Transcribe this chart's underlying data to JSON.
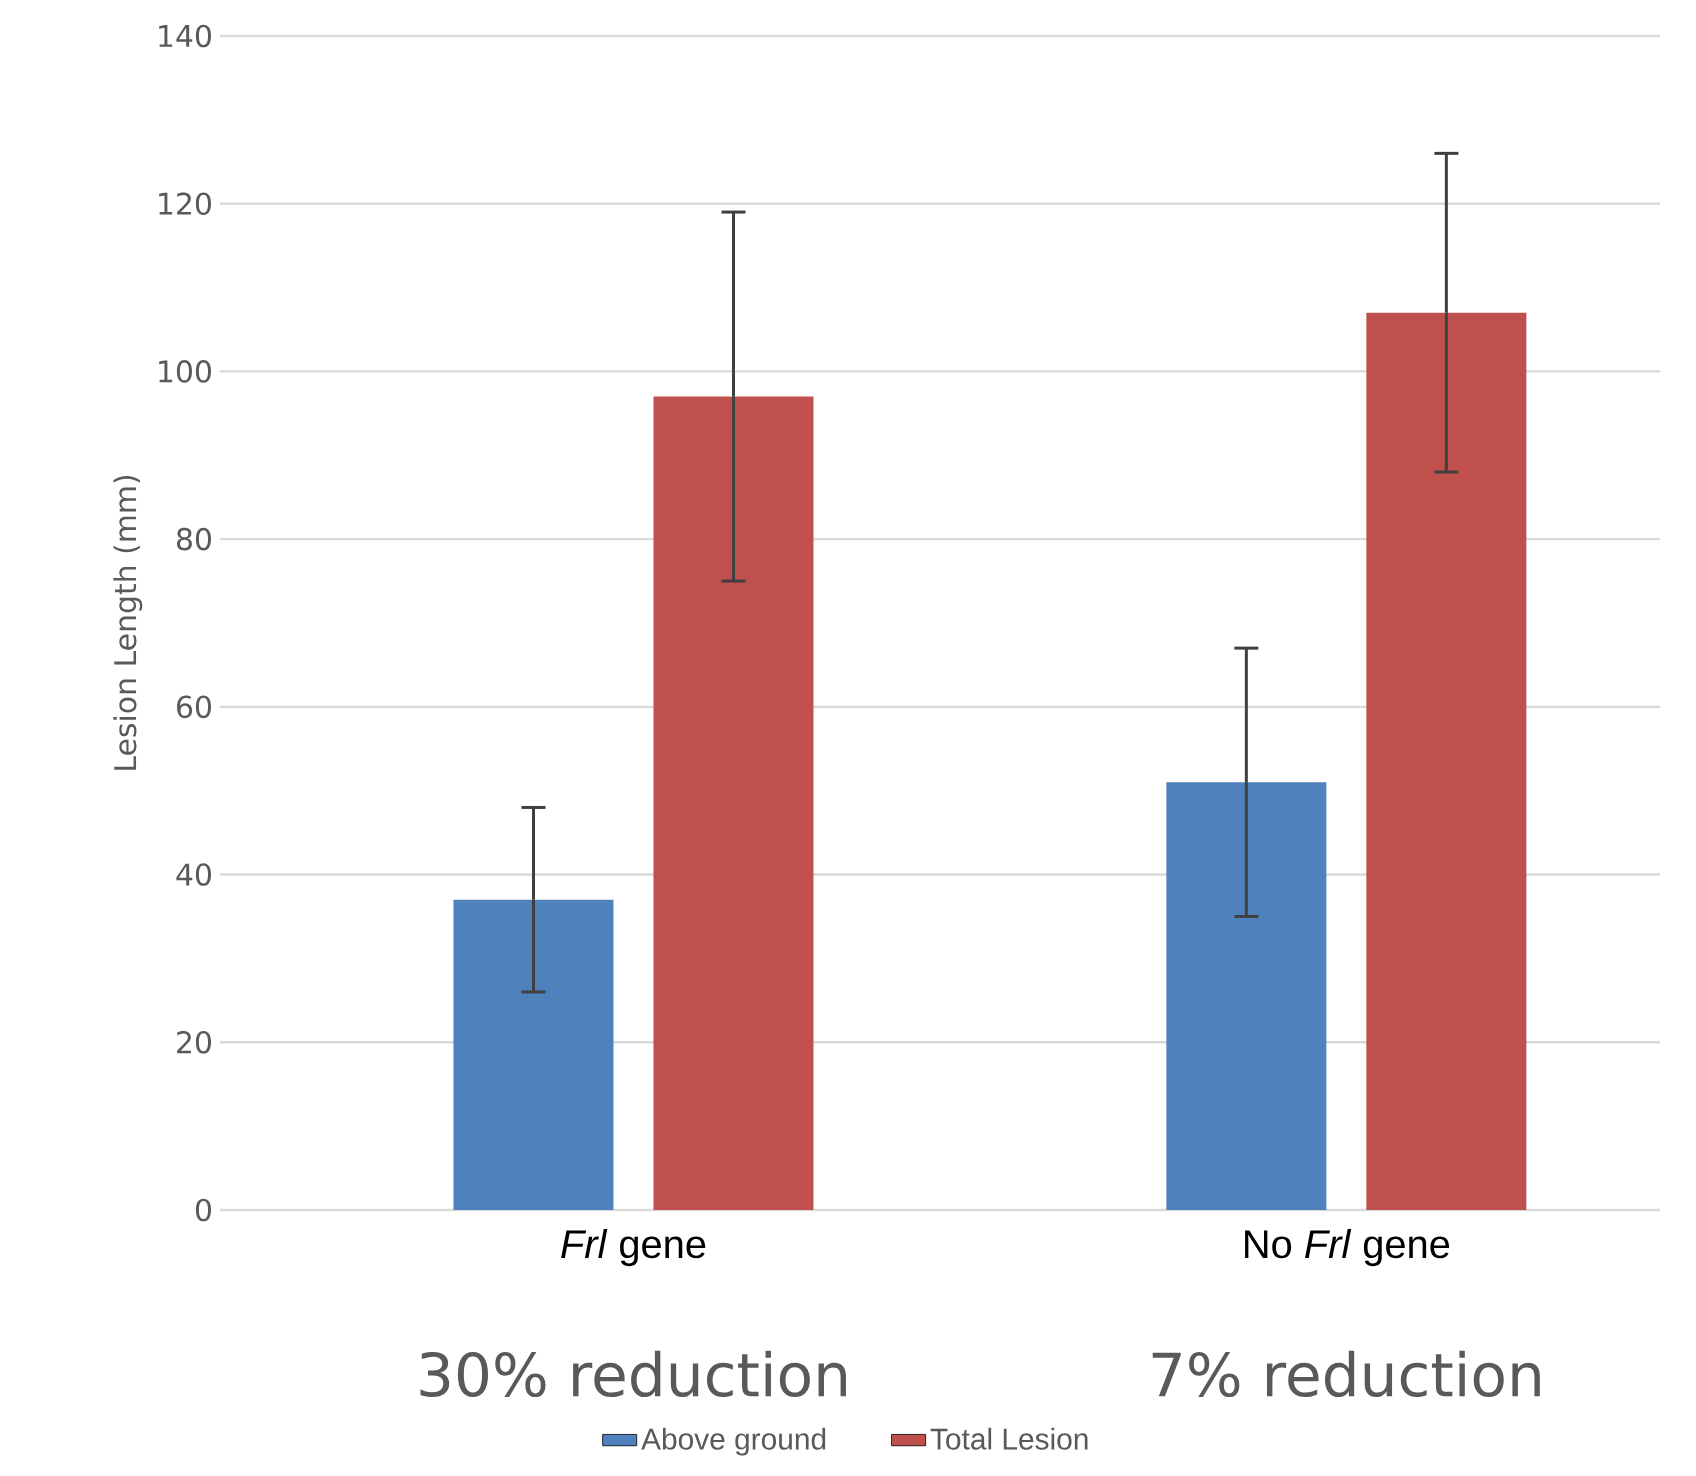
{
  "chart_data": {
    "type": "bar",
    "ylabel": "Lesion Length (mm)",
    "categories": [
      "*Frl* gene",
      "No *Frl* gene"
    ],
    "series": [
      {
        "name": "Above ground",
        "color": "#4f81bd",
        "values": [
          37,
          51
        ],
        "errors": [
          11,
          16
        ]
      },
      {
        "name": "Total Lesion",
        "color": "#c0504d",
        "values": [
          97,
          107
        ],
        "errors": [
          22,
          19
        ]
      }
    ],
    "ylim": [
      0,
      140
    ],
    "yticks": [
      0,
      20,
      40,
      60,
      80,
      100,
      120,
      140
    ],
    "grid": "y",
    "legend": "bottom",
    "annotations": [
      "30% reduction",
      "7% reduction"
    ]
  }
}
